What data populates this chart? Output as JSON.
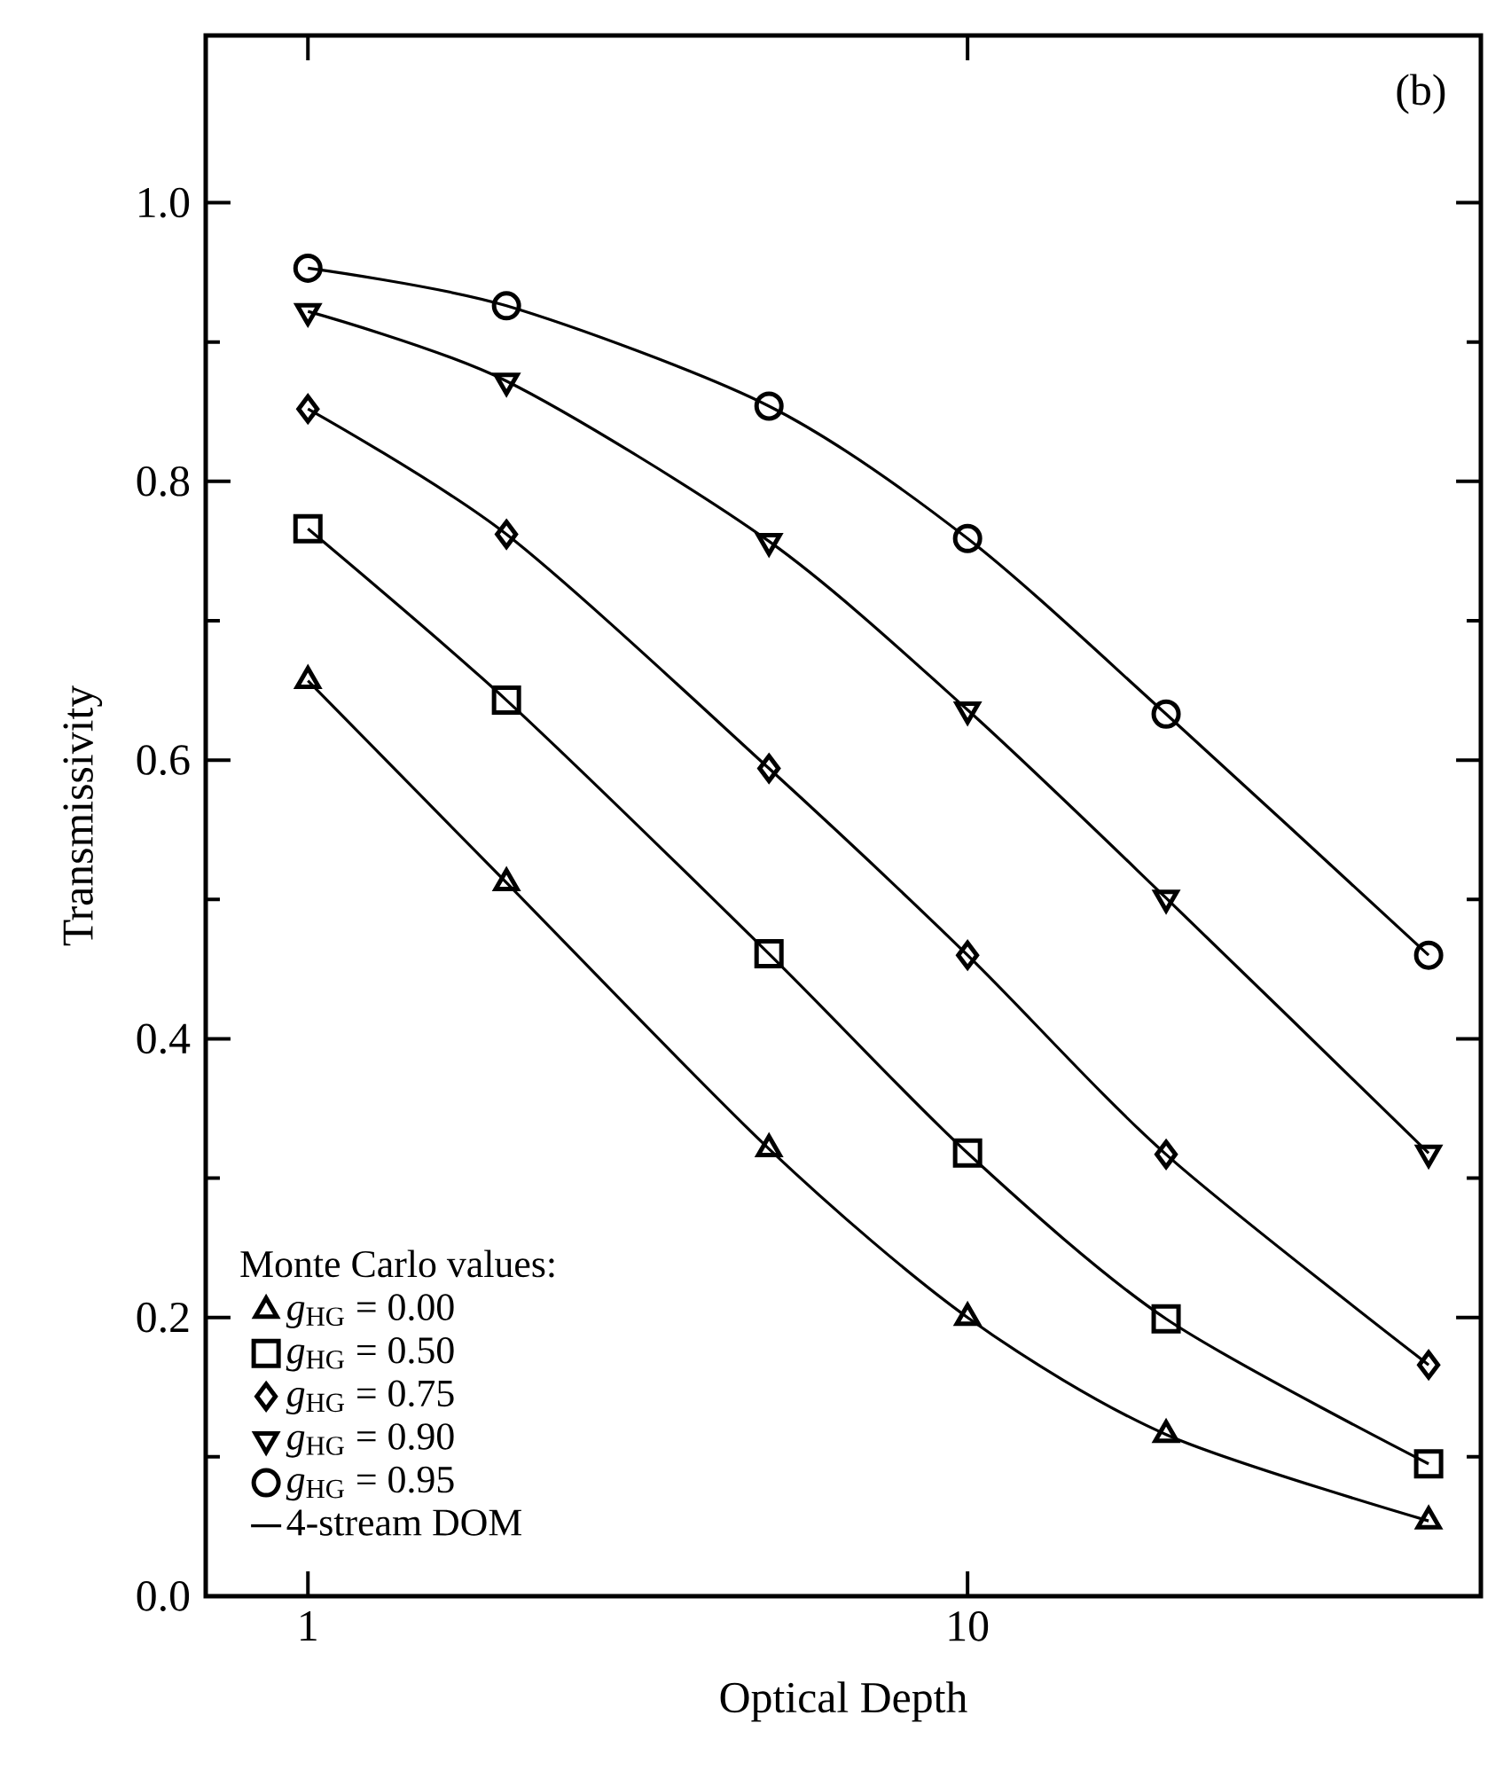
{
  "chart_data": {
    "type": "scatter",
    "xlabel": "Optical Depth",
    "ylabel": "Transmissivity",
    "legend_title": "Monte Carlo values:",
    "annotations": [
      "(b)"
    ],
    "x": [
      1,
      2,
      5,
      10,
      20,
      50
    ],
    "xlim": [
      0.7,
      60
    ],
    "ylim": [
      0,
      1.12
    ],
    "log": "x",
    "legend": "bottom left",
    "xticks": [
      1,
      10
    ],
    "yticks": [
      {
        "value": 0,
        "label": "0.0"
      },
      {
        "value": 0.2,
        "label": "0.2"
      },
      {
        "value": 0.4,
        "label": "0.4"
      },
      {
        "value": 0.6,
        "label": "0.6"
      },
      {
        "value": 0.8,
        "label": "0.8"
      },
      {
        "value": 1.0,
        "label": "1.0"
      }
    ],
    "series": [
      {
        "name": "*g*$_{HG}$ = 0.00",
        "color": "#000000",
        "marker": "triangle",
        "values": [
          0.657,
          0.512,
          0.321,
          0.2,
          0.116,
          0.054
        ]
      },
      {
        "name": "*g*$_{HG}$ = 0.50",
        "color": "#000000",
        "marker": "square",
        "values": [
          0.766,
          0.643,
          0.461,
          0.318,
          0.199,
          0.095
        ]
      },
      {
        "name": "*g*$_{HG}$ = 0.75",
        "color": "#000000",
        "marker": "diamond",
        "values": [
          0.852,
          0.762,
          0.594,
          0.46,
          0.317,
          0.166
        ]
      },
      {
        "name": "*g*$_{HG}$ = 0.90",
        "color": "#000000",
        "marker": "triangle-down",
        "values": [
          0.922,
          0.872,
          0.757,
          0.636,
          0.501,
          0.318
        ]
      },
      {
        "name": "*g*$_{HG}$ = 0.95",
        "color": "#000000",
        "marker": "circle",
        "values": [
          0.953,
          0.926,
          0.854,
          0.759,
          0.633,
          0.46
        ]
      },
      {
        "name": "4-stream DOM",
        "type": "line",
        "color": "#000000",
        "marker": "none",
        "line_style": "solid",
        "values": [
          0.657,
          0.512,
          0.321,
          0.2,
          0.116,
          0.054
        ]
      },
      {
        "type": "line",
        "color": "#000000",
        "marker": "none",
        "line_style": "solid",
        "values": [
          0.766,
          0.643,
          0.461,
          0.318,
          0.199,
          0.095
        ]
      },
      {
        "type": "line",
        "color": "#000000",
        "marker": "none",
        "line_style": "solid",
        "values": [
          0.852,
          0.762,
          0.594,
          0.46,
          0.317,
          0.166
        ]
      },
      {
        "type": "line",
        "color": "#000000",
        "marker": "none",
        "line_style": "solid",
        "values": [
          0.922,
          0.872,
          0.757,
          0.636,
          0.501,
          0.318
        ]
      },
      {
        "type": "line",
        "color": "#000000",
        "marker": "none",
        "line_style": "solid",
        "values": [
          0.953,
          0.926,
          0.854,
          0.759,
          0.633,
          0.46
        ]
      }
    ]
  }
}
